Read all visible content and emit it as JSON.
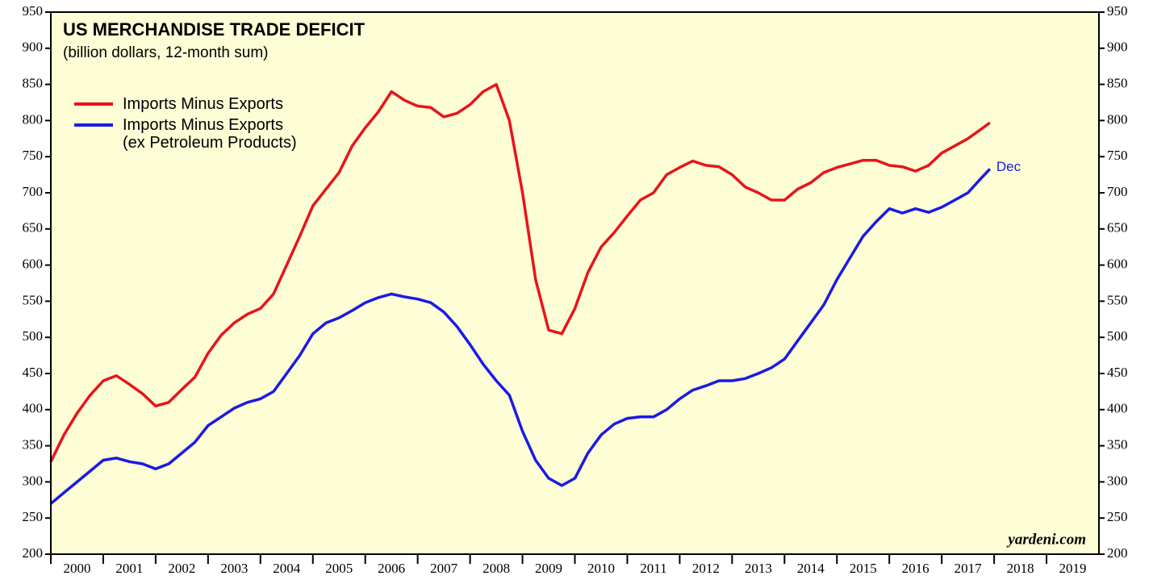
{
  "chart_data": {
    "type": "line",
    "title": "US MERCHANDISE TRADE DEFICIT",
    "subtitle": "(billion dollars, 12-month sum)",
    "annotation": "Dec",
    "source": "yardeni.com",
    "x": [
      2000.0,
      2000.25,
      2000.5,
      2000.75,
      2001.0,
      2001.25,
      2001.5,
      2001.75,
      2002.0,
      2002.25,
      2002.5,
      2002.75,
      2003.0,
      2003.25,
      2003.5,
      2003.75,
      2004.0,
      2004.25,
      2004.5,
      2004.75,
      2005.0,
      2005.25,
      2005.5,
      2005.75,
      2006.0,
      2006.25,
      2006.5,
      2006.75,
      2007.0,
      2007.25,
      2007.5,
      2007.75,
      2008.0,
      2008.25,
      2008.5,
      2008.75,
      2009.0,
      2009.25,
      2009.5,
      2009.75,
      2010.0,
      2010.25,
      2010.5,
      2010.75,
      2011.0,
      2011.25,
      2011.5,
      2011.75,
      2012.0,
      2012.25,
      2012.5,
      2012.75,
      2013.0,
      2013.25,
      2013.5,
      2013.75,
      2014.0,
      2014.25,
      2014.5,
      2014.75,
      2015.0,
      2015.25,
      2015.5,
      2015.75,
      2016.0,
      2016.25,
      2016.5,
      2016.75,
      2017.0,
      2017.25,
      2017.5,
      2017.75,
      2017.92
    ],
    "series": [
      {
        "name": "Imports Minus Exports",
        "color": "#e8141b",
        "values": [
          328,
          365,
          395,
          420,
          440,
          447,
          435,
          422,
          405,
          410,
          428,
          445,
          478,
          503,
          520,
          532,
          540,
          560,
          600,
          640,
          682,
          705,
          728,
          765,
          790,
          812,
          840,
          828,
          820,
          818,
          805,
          810,
          822,
          840,
          850,
          800,
          700,
          580,
          510,
          505,
          540,
          590,
          625,
          645,
          668,
          690,
          700,
          725,
          735,
          744,
          738,
          736,
          725,
          708,
          700,
          690,
          690,
          705,
          714,
          728,
          735,
          740,
          745,
          745,
          738,
          736,
          730,
          738,
          755,
          765,
          775,
          788,
          797
        ]
      },
      {
        "name": "Imports Minus Exports\n(ex Petroleum Products)",
        "color": "#1a1ae6",
        "values": [
          270,
          285,
          300,
          315,
          330,
          333,
          328,
          325,
          318,
          325,
          340,
          355,
          378,
          390,
          402,
          410,
          415,
          425,
          450,
          475,
          505,
          520,
          527,
          537,
          548,
          555,
          560,
          556,
          553,
          548,
          535,
          515,
          490,
          463,
          440,
          420,
          370,
          330,
          305,
          295,
          305,
          340,
          365,
          380,
          388,
          390,
          390,
          400,
          415,
          427,
          433,
          440,
          440,
          443,
          450,
          458,
          470,
          495,
          520,
          545,
          580,
          610,
          640,
          660,
          678,
          672,
          678,
          673,
          680,
          690,
          700,
          720,
          733
        ]
      }
    ],
    "ylim": [
      200,
      950
    ],
    "yticks": [
      200,
      250,
      300,
      350,
      400,
      450,
      500,
      550,
      600,
      650,
      700,
      750,
      800,
      850,
      900,
      950
    ],
    "xlim": [
      2000,
      2020
    ],
    "xticks": [
      2000,
      2001,
      2002,
      2003,
      2004,
      2005,
      2006,
      2007,
      2008,
      2009,
      2010,
      2011,
      2012,
      2013,
      2014,
      2015,
      2016,
      2017,
      2018,
      2019
    ],
    "background": "#fdfdd6"
  }
}
